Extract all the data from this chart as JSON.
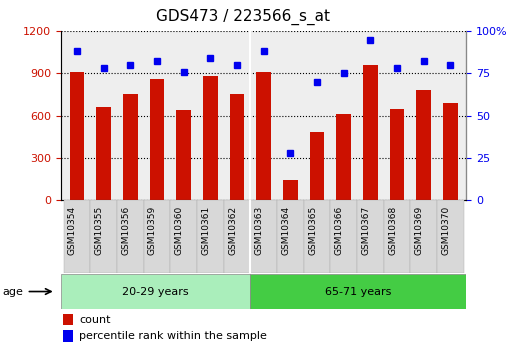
{
  "title": "GDS473 / 223566_s_at",
  "samples": [
    "GSM10354",
    "GSM10355",
    "GSM10356",
    "GSM10359",
    "GSM10360",
    "GSM10361",
    "GSM10362",
    "GSM10363",
    "GSM10364",
    "GSM10365",
    "GSM10366",
    "GSM10367",
    "GSM10368",
    "GSM10369",
    "GSM10370"
  ],
  "counts": [
    910,
    660,
    750,
    860,
    640,
    880,
    750,
    910,
    140,
    480,
    610,
    960,
    650,
    780,
    690
  ],
  "percentiles": [
    88,
    78,
    80,
    82,
    76,
    84,
    80,
    88,
    28,
    70,
    75,
    95,
    78,
    82,
    80
  ],
  "groups": [
    {
      "label": "20-29 years",
      "start": 0,
      "end": 7
    },
    {
      "label": "65-71 years",
      "start": 7,
      "end": 15
    }
  ],
  "bar_color": "#cc1100",
  "dot_color": "#0000ee",
  "ylim_left": [
    0,
    1200
  ],
  "ylim_right": [
    0,
    100
  ],
  "yticks_left": [
    0,
    300,
    600,
    900,
    1200
  ],
  "ytick_labels_left": [
    "0",
    "300",
    "600",
    "900",
    "1200"
  ],
  "ytick_labels_right": [
    "0",
    "25",
    "50",
    "75",
    "100%"
  ],
  "yticks_right": [
    0,
    25,
    50,
    75,
    100
  ],
  "age_label": "age",
  "bg_plot": "#eeeeee",
  "group0_color": "#aaeebb",
  "group1_color": "#44cc44",
  "legend_count": "count",
  "legend_pct": "percentile rank within the sample",
  "title_fontsize": 11,
  "tick_label_color_left": "#cc1100",
  "tick_label_color_right": "#0000ee",
  "n_group0": 7,
  "n_group1": 8
}
